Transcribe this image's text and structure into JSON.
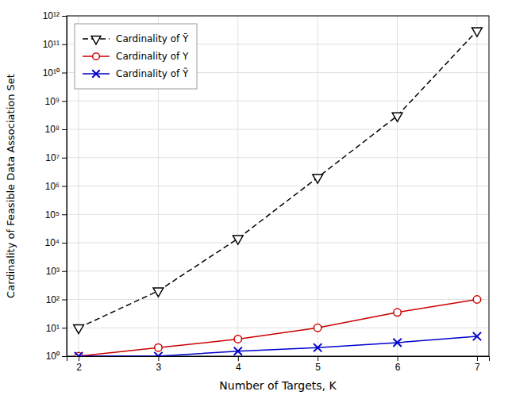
{
  "chart_data": {
    "type": "line",
    "xlabel": "Number of Targets, K",
    "ylabel": "Cardinality of Feasible Data Association Set",
    "x": [
      2,
      3,
      4,
      5,
      6,
      7
    ],
    "series": [
      {
        "name": "Cardinality of Ȳ",
        "color": "#000000",
        "marker": "triangle-down",
        "line_style": "dashed",
        "values": [
          10,
          200,
          14000,
          2000000,
          300000000,
          300000000000
        ]
      },
      {
        "name": "Cardinality of Y",
        "color": "#cc0000",
        "marker": "circle",
        "line_style": "solid",
        "values": [
          1.0,
          2.0,
          4.0,
          10.0,
          35.0,
          100.0
        ]
      },
      {
        "name": "Cardinality of Ỹ",
        "color": "#0000cc",
        "marker": "x",
        "line_style": "solid",
        "values": [
          1.0,
          1.0,
          1.5,
          2.0,
          3.0,
          5.0
        ]
      }
    ],
    "xlim": [
      1.85,
      7.15
    ],
    "xticks": [
      2,
      3,
      4,
      5,
      6,
      7
    ],
    "ylim": [
      1,
      1000000000000.0
    ],
    "yticks": [
      {
        "value": 1,
        "label": "10⁰"
      },
      {
        "value": 10,
        "label": "10¹"
      },
      {
        "value": 100,
        "label": "10²"
      },
      {
        "value": 1000,
        "label": "10³"
      },
      {
        "value": 10000,
        "label": "10⁴"
      },
      {
        "value": 100000,
        "label": "10⁵"
      },
      {
        "value": 1000000,
        "label": "10⁶"
      },
      {
        "value": 10000000,
        "label": "10⁷"
      },
      {
        "value": 100000000,
        "label": "10⁸"
      },
      {
        "value": 1000000000,
        "label": "10⁹"
      },
      {
        "value": 10000000000,
        "label": "10¹⁰"
      },
      {
        "value": 100000000000,
        "label": "10¹¹"
      },
      {
        "value": 1000000000000,
        "label": "10¹²"
      }
    ],
    "log": "y",
    "grid": true,
    "legend": "upper left"
  }
}
